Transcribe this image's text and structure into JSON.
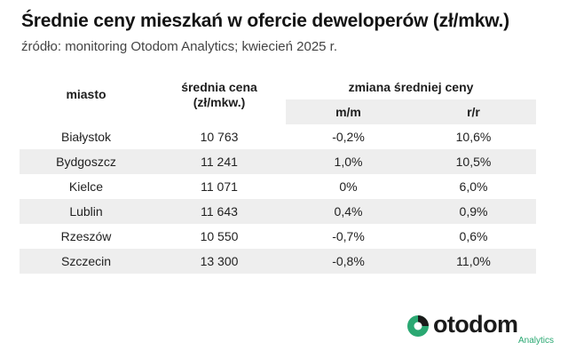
{
  "title": "Średnie ceny mieszkań w ofercie deweloperów (zł/mkw.)",
  "subtitle": "źródło: monitoring Otodom Analytics; kwiecień 2025 r.",
  "table": {
    "headers": {
      "miasto": "miasto",
      "cena_line1": "średnia cena",
      "cena_line2": "(zł/mkw.)",
      "zmiana": "zmiana średniej ceny",
      "mm": "m/m",
      "rr": "r/r"
    },
    "rows": [
      {
        "miasto": "Białystok",
        "cena": "10 763",
        "mm": "-0,2%",
        "rr": "10,6%"
      },
      {
        "miasto": "Bydgoszcz",
        "cena": "11 241",
        "mm": "1,0%",
        "rr": "10,5%"
      },
      {
        "miasto": "Kielce",
        "cena": "11 071",
        "mm": "0%",
        "rr": "6,0%"
      },
      {
        "miasto": "Lublin",
        "cena": "11 643",
        "mm": "0,4%",
        "rr": "0,9%"
      },
      {
        "miasto": "Rzeszów",
        "cena": "10 550",
        "mm": "-0,7%",
        "rr": "0,6%"
      },
      {
        "miasto": "Szczecin",
        "cena": "13 300",
        "mm": "-0,8%",
        "rr": "11,0%"
      }
    ]
  },
  "logo": {
    "word": "otodom",
    "sub": "Analytics",
    "icon": "otodom-logo-icon",
    "colors": {
      "green": "#2aa872",
      "dark": "#1a1a1a"
    }
  }
}
